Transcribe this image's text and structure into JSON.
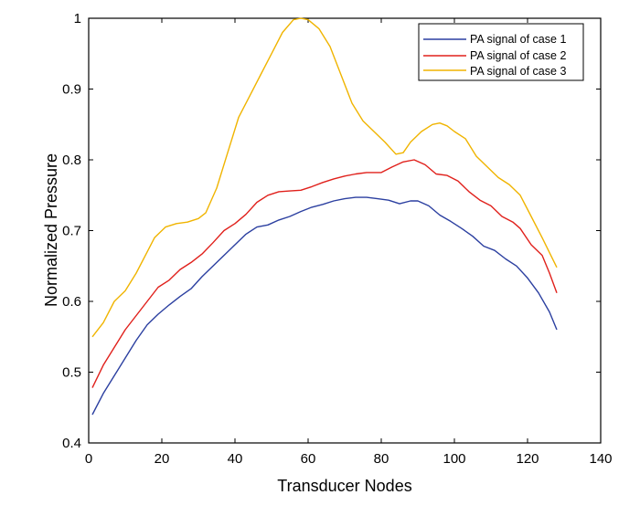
{
  "chart_data": {
    "type": "line",
    "title": "",
    "xlabel": "Transducer Nodes",
    "ylabel": "Normalized Pressure",
    "xlim": [
      0,
      140
    ],
    "ylim": [
      0.4,
      1
    ],
    "xticks": [
      0,
      20,
      40,
      60,
      80,
      100,
      120,
      140
    ],
    "yticks": [
      0.4,
      0.5,
      0.6,
      0.7,
      0.8,
      0.9,
      1
    ],
    "ytick_labels": [
      "0.4",
      "0.5",
      "0.6",
      "0.7",
      "0.8",
      "0.9",
      "1"
    ],
    "grid": false,
    "legend_position": "top-right",
    "series": [
      {
        "name": "PA signal of case 1",
        "color": "#2b3fa0",
        "x": [
          1,
          4,
          7,
          10,
          13,
          16,
          19,
          22,
          25,
          28,
          31,
          34,
          37,
          40,
          43,
          46,
          49,
          52,
          55,
          58,
          61,
          64,
          67,
          70,
          73,
          76,
          79,
          82,
          85,
          88,
          90,
          93,
          96,
          99,
          102,
          105,
          108,
          111,
          114,
          117,
          120,
          123,
          126,
          128
        ],
        "y": [
          0.44,
          0.47,
          0.495,
          0.52,
          0.545,
          0.567,
          0.582,
          0.595,
          0.607,
          0.618,
          0.635,
          0.65,
          0.665,
          0.68,
          0.695,
          0.705,
          0.708,
          0.715,
          0.72,
          0.727,
          0.733,
          0.737,
          0.742,
          0.745,
          0.747,
          0.747,
          0.745,
          0.743,
          0.738,
          0.742,
          0.742,
          0.735,
          0.722,
          0.713,
          0.703,
          0.692,
          0.678,
          0.672,
          0.66,
          0.65,
          0.633,
          0.612,
          0.585,
          0.56
        ]
      },
      {
        "name": "PA signal of case 2",
        "color": "#e0201b",
        "x": [
          1,
          4,
          7,
          10,
          13,
          16,
          19,
          22,
          25,
          28,
          31,
          34,
          37,
          40,
          43,
          46,
          49,
          52,
          55,
          58,
          61,
          64,
          67,
          70,
          73,
          76,
          80,
          83,
          86,
          89,
          92,
          95,
          98,
          101,
          104,
          107,
          110,
          113,
          116,
          118,
          121,
          124,
          126,
          128
        ],
        "y": [
          0.478,
          0.51,
          0.535,
          0.56,
          0.58,
          0.6,
          0.62,
          0.63,
          0.645,
          0.655,
          0.667,
          0.683,
          0.7,
          0.71,
          0.723,
          0.74,
          0.75,
          0.755,
          0.756,
          0.757,
          0.762,
          0.768,
          0.773,
          0.777,
          0.78,
          0.782,
          0.782,
          0.79,
          0.797,
          0.8,
          0.793,
          0.78,
          0.778,
          0.77,
          0.755,
          0.743,
          0.735,
          0.72,
          0.712,
          0.703,
          0.68,
          0.665,
          0.64,
          0.612
        ]
      },
      {
        "name": "PA signal of case 3",
        "color": "#f0b400",
        "x": [
          1,
          4,
          7,
          10,
          13,
          16,
          18,
          21,
          24,
          27,
          30,
          32,
          35,
          38,
          41,
          44,
          47,
          50,
          53,
          56,
          58,
          60,
          63,
          66,
          69,
          72,
          75,
          78,
          81,
          84,
          86,
          88,
          91,
          94,
          96,
          98,
          100,
          103,
          106,
          109,
          112,
          115,
          118,
          121,
          124,
          128
        ],
        "y": [
          0.55,
          0.57,
          0.6,
          0.615,
          0.64,
          0.67,
          0.69,
          0.705,
          0.71,
          0.712,
          0.717,
          0.725,
          0.76,
          0.81,
          0.86,
          0.89,
          0.92,
          0.95,
          0.98,
          0.998,
          1.0,
          0.998,
          0.985,
          0.96,
          0.92,
          0.88,
          0.855,
          0.84,
          0.825,
          0.808,
          0.81,
          0.825,
          0.84,
          0.85,
          0.852,
          0.848,
          0.84,
          0.83,
          0.805,
          0.79,
          0.775,
          0.765,
          0.75,
          0.72,
          0.69,
          0.648
        ]
      }
    ]
  }
}
